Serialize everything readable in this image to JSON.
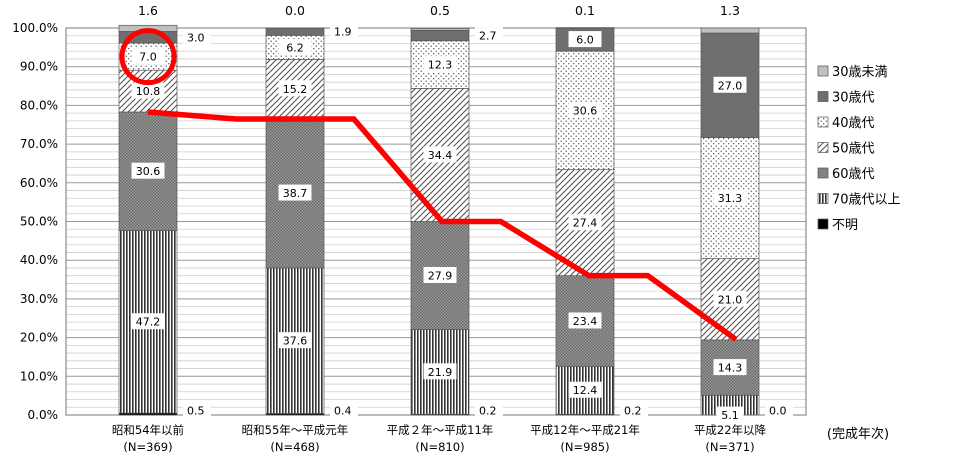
{
  "chart_data": {
    "type": "bar",
    "stacked": true,
    "percent": true,
    "ylim": [
      0,
      100
    ],
    "yticks": [
      0,
      10,
      20,
      30,
      40,
      50,
      60,
      70,
      80,
      90,
      100
    ],
    "ytick_suffix": "%",
    "categories": [
      "昭和54年以前",
      "昭和55年～平成元年",
      "平成２年～平成11年",
      "平成12年～平成21年",
      "平成22年以降"
    ],
    "category_counts": [
      "(N=369)",
      "(N=468)",
      "(N=810)",
      "(N=985)",
      "(N=371)"
    ],
    "xlabel": "(完成年次)",
    "legend_position": "right",
    "series": [
      {
        "name": "不明",
        "values": [
          0.5,
          0.4,
          0.2,
          0.2,
          0.0
        ],
        "color": "#000000",
        "pattern": "black"
      },
      {
        "name": "70歳代以上",
        "values": [
          47.2,
          37.6,
          21.9,
          12.4,
          5.1
        ],
        "color": "#555555",
        "pattern": "vlines"
      },
      {
        "name": "60歳代",
        "values": [
          30.6,
          38.7,
          27.9,
          23.4,
          14.3
        ],
        "color": "#888888",
        "pattern": "cross"
      },
      {
        "name": "50歳代",
        "values": [
          10.8,
          15.2,
          34.4,
          27.4,
          21.0
        ],
        "color": "#444444",
        "pattern": "diag"
      },
      {
        "name": "40歳代",
        "values": [
          7.0,
          6.2,
          12.3,
          30.6,
          31.3
        ],
        "color": "#999999",
        "pattern": "dots"
      },
      {
        "name": "30歳代",
        "values": [
          3.0,
          1.9,
          2.7,
          6.0,
          27.0
        ],
        "color": "#777777",
        "pattern": "solid"
      },
      {
        "name": "30歳未満",
        "values": [
          1.6,
          0.0,
          0.5,
          0.1,
          1.3
        ],
        "color": "#bbbbbb",
        "pattern": "solid-light"
      }
    ],
    "legend_order": [
      "30歳未満",
      "30歳代",
      "40歳代",
      "50歳代",
      "60歳代",
      "70歳代以上",
      "不明"
    ],
    "annotations": {
      "trend_line": {
        "color": "#ff0000",
        "description_points": [
          [
            0,
            78.3
          ],
          [
            0.6,
            76.5
          ],
          [
            1.4,
            76.5
          ],
          [
            2.0,
            50.0
          ],
          [
            2.4,
            50.0
          ],
          [
            3.0,
            36.0
          ],
          [
            3.4,
            36.0
          ],
          [
            4.0,
            19.5
          ]
        ]
      },
      "circle": {
        "category_index": 0,
        "series": "40歳代",
        "color": "#ff0000"
      }
    },
    "grid": true
  }
}
